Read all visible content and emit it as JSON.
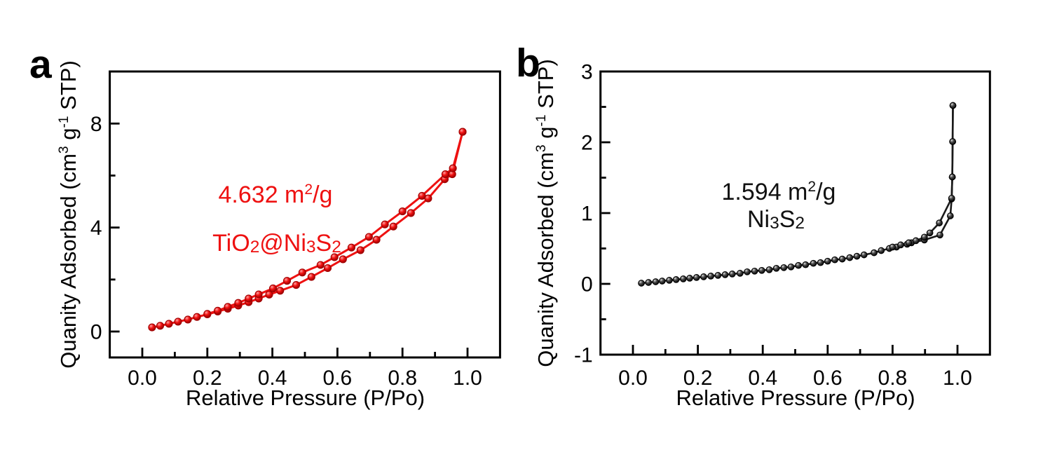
{
  "panels": {
    "a": {
      "letter": "a",
      "annotation": {
        "area_p1": "4.632 m",
        "area_sup": "2",
        "area_p2": "/g",
        "sample_p1": "TiO",
        "sample_s1": "2",
        "sample_p2": "@Ni",
        "sample_s2": "3",
        "sample_p3": "S",
        "sample_s3": "2",
        "color": "#ee1111"
      }
    },
    "b": {
      "letter": "b",
      "annotation": {
        "area_p1": "1.594 m",
        "area_sup": "2",
        "area_p2": "/g",
        "sample_p1": "Ni",
        "sample_s1": "3",
        "sample_p2": "S",
        "sample_s2": "2",
        "color": "#111111"
      }
    }
  },
  "axis_labels": {
    "xlabel": "Relative Pressure (P/Po)",
    "ylabel_p1": "Quanity Adsorbed (cm",
    "ylabel_sup1": "3",
    "ylabel_p2": " g",
    "ylabel_sup2": "-1",
    "ylabel_p3": " STP)"
  },
  "chart_data": [
    {
      "type": "line",
      "panel": "a",
      "sample": "TiO2@Ni3S2",
      "bet_surface_area": "4.632 m2/g",
      "color": "#ee1111",
      "xlabel": "Relative Pressure (P/Po)",
      "ylabel": "Quanity Adsorbed (cm3 g-1 STP)",
      "xlim": [
        -0.1,
        1.1
      ],
      "ylim": [
        -1,
        10
      ],
      "x_ticks": [
        0.0,
        0.2,
        0.4,
        0.6,
        0.8,
        1.0
      ],
      "x_tick_labels": [
        "0.0",
        "0.2",
        "0.4",
        "0.6",
        "0.8",
        "1.0"
      ],
      "x_minor_ticks": [
        0.1,
        0.3,
        0.5,
        0.7,
        0.9
      ],
      "y_ticks": [
        0,
        4,
        8
      ],
      "y_tick_labels": [
        "0",
        "4",
        "8"
      ],
      "y_minor_ticks": [
        2,
        6
      ],
      "legend": "none",
      "grid": false,
      "series": [
        {
          "name": "adsorption",
          "points": [
            [
              0.03,
              0.16
            ],
            [
              0.055,
              0.22
            ],
            [
              0.082,
              0.3
            ],
            [
              0.11,
              0.38
            ],
            [
              0.14,
              0.46
            ],
            [
              0.168,
              0.56
            ],
            [
              0.2,
              0.66
            ],
            [
              0.232,
              0.77
            ],
            [
              0.263,
              0.88
            ],
            [
              0.295,
              1.0
            ],
            [
              0.327,
              1.13
            ],
            [
              0.358,
              1.27
            ],
            [
              0.39,
              1.42
            ],
            [
              0.424,
              1.57
            ],
            [
              0.473,
              1.79
            ],
            [
              0.52,
              2.1
            ],
            [
              0.57,
              2.44
            ],
            [
              0.617,
              2.78
            ],
            [
              0.671,
              3.13
            ],
            [
              0.72,
              3.53
            ],
            [
              0.772,
              4.04
            ],
            [
              0.826,
              4.56
            ],
            [
              0.879,
              5.12
            ],
            [
              0.93,
              5.86
            ],
            [
              0.953,
              6.05
            ],
            [
              0.985,
              7.68
            ]
          ]
        },
        {
          "name": "desorption",
          "points": [
            [
              0.985,
              7.68
            ],
            [
              0.955,
              6.28
            ],
            [
              0.932,
              6.05
            ],
            [
              0.86,
              5.22
            ],
            [
              0.8,
              4.62
            ],
            [
              0.746,
              4.12
            ],
            [
              0.697,
              3.64
            ],
            [
              0.643,
              3.23
            ],
            [
              0.591,
              2.86
            ],
            [
              0.548,
              2.56
            ],
            [
              0.492,
              2.27
            ],
            [
              0.445,
              1.95
            ],
            [
              0.402,
              1.66
            ],
            [
              0.358,
              1.43
            ],
            [
              0.327,
              1.27
            ],
            [
              0.295,
              1.1
            ],
            [
              0.263,
              0.95
            ],
            [
              0.232,
              0.8
            ],
            [
              0.2,
              0.68
            ]
          ]
        }
      ]
    },
    {
      "type": "line",
      "panel": "b",
      "sample": "Ni3S2",
      "bet_surface_area": "1.594 m2/g",
      "color": "#1a1a1a",
      "xlabel": "Relative Pressure (P/Po)",
      "ylabel": "Quanity Adsorbed (cm3 g-1 STP)",
      "xlim": [
        -0.1,
        1.1
      ],
      "ylim": [
        -1,
        3
      ],
      "x_ticks": [
        0.0,
        0.2,
        0.4,
        0.6,
        0.8,
        1.0
      ],
      "x_tick_labels": [
        "0.0",
        "0.2",
        "0.4",
        "0.6",
        "0.8",
        "1.0"
      ],
      "x_minor_ticks": [
        0.1,
        0.3,
        0.5,
        0.7,
        0.9
      ],
      "y_ticks": [
        -1,
        0,
        1,
        2,
        3
      ],
      "y_tick_labels": [
        "-1",
        "0",
        "1",
        "2",
        "3"
      ],
      "y_minor_ticks": [
        -0.5,
        0.5,
        1.5,
        2.5
      ],
      "legend": "none",
      "grid": false,
      "series": [
        {
          "name": "adsorption",
          "points": [
            [
              0.026,
              0.01
            ],
            [
              0.048,
              0.02
            ],
            [
              0.07,
              0.03
            ],
            [
              0.09,
              0.04
            ],
            [
              0.112,
              0.05
            ],
            [
              0.133,
              0.06
            ],
            [
              0.155,
              0.07
            ],
            [
              0.175,
              0.08
            ],
            [
              0.196,
              0.09
            ],
            [
              0.218,
              0.1
            ],
            [
              0.24,
              0.11
            ],
            [
              0.262,
              0.12
            ],
            [
              0.284,
              0.13
            ],
            [
              0.306,
              0.14
            ],
            [
              0.33,
              0.15
            ],
            [
              0.352,
              0.17
            ],
            [
              0.375,
              0.18
            ],
            [
              0.397,
              0.19
            ],
            [
              0.42,
              0.2
            ],
            [
              0.442,
              0.22
            ],
            [
              0.465,
              0.23
            ],
            [
              0.487,
              0.24
            ],
            [
              0.51,
              0.26
            ],
            [
              0.532,
              0.27
            ],
            [
              0.556,
              0.29
            ],
            [
              0.578,
              0.3
            ],
            [
              0.6,
              0.32
            ],
            [
              0.622,
              0.34
            ],
            [
              0.645,
              0.35
            ],
            [
              0.668,
              0.37
            ],
            [
              0.69,
              0.39
            ],
            [
              0.712,
              0.41
            ],
            [
              0.743,
              0.44
            ],
            [
              0.765,
              0.47
            ],
            [
              0.79,
              0.5
            ],
            [
              0.812,
              0.52
            ],
            [
              0.845,
              0.56
            ],
            [
              0.858,
              0.58
            ],
            [
              0.898,
              0.62
            ],
            [
              0.946,
              0.69
            ],
            [
              0.978,
              0.96
            ],
            [
              0.982,
              1.2
            ],
            [
              0.984,
              1.51
            ],
            [
              0.985,
              2.01
            ],
            [
              0.986,
              2.52
            ]
          ]
        },
        {
          "name": "desorption",
          "points": [
            [
              0.986,
              2.52
            ],
            [
              0.985,
              2.01
            ],
            [
              0.984,
              1.51
            ],
            [
              0.982,
              1.21
            ],
            [
              0.944,
              0.86
            ],
            [
              0.915,
              0.72
            ],
            [
              0.898,
              0.66
            ],
            [
              0.872,
              0.61
            ],
            [
              0.85,
              0.58
            ],
            [
              0.825,
              0.55
            ],
            [
              0.8,
              0.52
            ]
          ]
        }
      ]
    }
  ]
}
